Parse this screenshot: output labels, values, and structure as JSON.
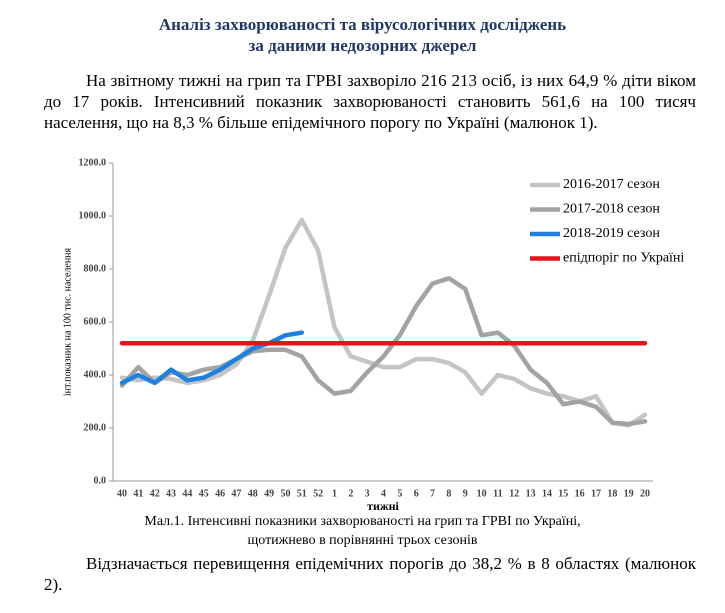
{
  "header": {
    "title_lines": [
      "Аналіз захворюваності та вірусологічних досліджень",
      "за даними недозорних джерел"
    ]
  },
  "paragraphs": [
    "На звітному тижні на грип та ГРВІ захворіло 216 213 осіб, із них 64,9 % діти віком до 17 років. Інтенсивний показник захворюваності становить 561,6 на 100 тисяч населення, що на 8,3 % більше епідемічного порогу по Україні (малюнок 1).",
    "Відзначається перевищення епідемічних порогів до 38,2 % в 8 областях (малюнок 2)."
  ],
  "caption_lines": [
    "Мал.1. Інтенсивні показники захворюваності на грип та ГРВІ по Україні,",
    "щотижнево в порівнянні трьох сезонів"
  ],
  "chart_data": {
    "type": "line",
    "x_label": "тижні",
    "y_label": "інт.показник на 100 тис. населення",
    "categories": [
      "40",
      "41",
      "42",
      "43",
      "44",
      "45",
      "46",
      "47",
      "48",
      "49",
      "50",
      "51",
      "52",
      "1",
      "2",
      "3",
      "4",
      "5",
      "6",
      "7",
      "8",
      "9",
      "10",
      "11",
      "12",
      "13",
      "14",
      "15",
      "16",
      "17",
      "18",
      "19",
      "20"
    ],
    "ylim": [
      0,
      1200
    ],
    "yticks": [
      {
        "value": 0,
        "label": "0.0"
      },
      {
        "value": 200,
        "label": "200.0"
      },
      {
        "value": 400,
        "label": "400.0"
      },
      {
        "value": 600,
        "label": "600.0"
      },
      {
        "value": 800,
        "label": "800.0"
      },
      {
        "value": 1000,
        "label": "1000.0"
      },
      {
        "value": 1200,
        "label": "1200.0"
      }
    ],
    "grid": false,
    "series": [
      {
        "name": "2016-2017 сезон",
        "color": "#c4c4c4",
        "values": [
          390,
          380,
          390,
          385,
          370,
          380,
          400,
          440,
          530,
          700,
          880,
          985,
          870,
          580,
          470,
          450,
          430,
          430,
          460,
          460,
          445,
          410,
          330,
          400,
          385,
          350,
          330,
          320,
          300,
          320,
          220,
          210,
          250
        ]
      },
      {
        "name": "2017-2018 сезон",
        "color": "#a3a3a3",
        "values": [
          360,
          430,
          370,
          410,
          400,
          420,
          430,
          460,
          490,
          495,
          495,
          470,
          380,
          330,
          340,
          410,
          470,
          550,
          660,
          745,
          765,
          725,
          550,
          560,
          510,
          420,
          370,
          290,
          300,
          280,
          220,
          215,
          225
        ]
      },
      {
        "name": "2018-2019 сезон",
        "color": "#1f80e0",
        "values": [
          370,
          400,
          370,
          420,
          380,
          390,
          420,
          460,
          500,
          520,
          550,
          560,
          null,
          null,
          null,
          null,
          null,
          null,
          null,
          null,
          null,
          null,
          null,
          null,
          null,
          null,
          null,
          null,
          null,
          null,
          null,
          null,
          null
        ]
      },
      {
        "name": "епідпоріг по Україні",
        "color": "#e3141b",
        "values": [
          520,
          520,
          520,
          520,
          520,
          520,
          520,
          520,
          520,
          520,
          520,
          520,
          520,
          520,
          520,
          520,
          520,
          520,
          520,
          520,
          520,
          520,
          520,
          520,
          520,
          520,
          520,
          520,
          520,
          520,
          520,
          520,
          520
        ]
      }
    ]
  }
}
